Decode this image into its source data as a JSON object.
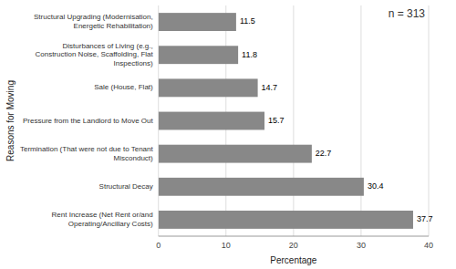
{
  "chart_data": {
    "type": "bar",
    "orientation": "horizontal",
    "categories": [
      "Rent Increase (Net Rent or/and\nOperating/Ancillary Costs)",
      "Structural Decay",
      "Termination (That were not due to Tenant\nMisconduct)",
      "Pressure from the Landlord to Move Out",
      "Sale (House, Flat)",
      "Disturbances of Living (e.g.,\nConstruction Noise, Scaffolding, Flat\nInspections)",
      "Structural Upgrading (Modernisation,\nEnergetic Rehabilitation)"
    ],
    "values": [
      37.7,
      30.4,
      22.7,
      15.7,
      14.7,
      11.8,
      11.5
    ],
    "color": "#888888",
    "xlabel": "Percentage",
    "ylabel": "Reasons for Moving",
    "xlim": [
      0,
      40
    ],
    "xticks": [
      0,
      10,
      20,
      30,
      40
    ],
    "annotation": "n = 313",
    "data_labels": true,
    "grid": true
  }
}
